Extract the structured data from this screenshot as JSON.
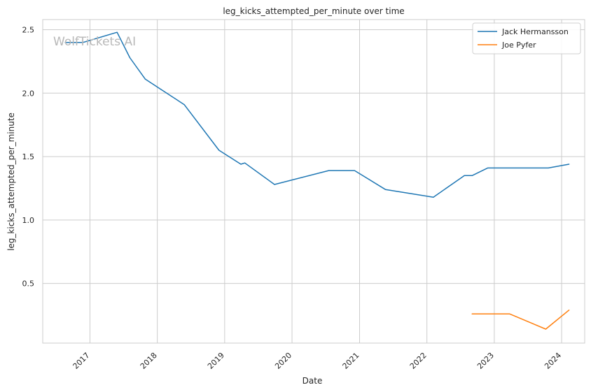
{
  "chart_data": {
    "type": "line",
    "title": "leg_kicks_attempted_per_minute over time",
    "xlabel": "Date",
    "ylabel": "leg_kicks_attempted_per_minute",
    "watermark": "WolfTickets AI",
    "x_ticks": [
      "2017",
      "2018",
      "2019",
      "2020",
      "2021",
      "2022",
      "2023",
      "2024"
    ],
    "y_ticks": [
      "0.5",
      "1.0",
      "1.5",
      "2.0",
      "2.5"
    ],
    "ylim": [
      0.03,
      2.58
    ],
    "xlim": [
      "2016-04-20",
      "2024-05-05"
    ],
    "grid": true,
    "legend_position": "top-right",
    "series": [
      {
        "name": "Jack Hermansson",
        "color": "#1f77b4",
        "points": [
          [
            "2016-08-20",
            2.4
          ],
          [
            "2016-11-25",
            2.4
          ],
          [
            "2017-05-28",
            2.48
          ],
          [
            "2017-08-05",
            2.28
          ],
          [
            "2017-10-28",
            2.11
          ],
          [
            "2018-05-27",
            1.91
          ],
          [
            "2018-12-01",
            1.55
          ],
          [
            "2019-03-30",
            1.44
          ],
          [
            "2019-04-20",
            1.45
          ],
          [
            "2019-09-28",
            1.28
          ],
          [
            "2020-07-18",
            1.39
          ],
          [
            "2020-12-05",
            1.39
          ],
          [
            "2021-05-22",
            1.24
          ],
          [
            "2022-02-05",
            1.18
          ],
          [
            "2022-07-23",
            1.35
          ],
          [
            "2022-09-03",
            1.35
          ],
          [
            "2022-11-26",
            1.41
          ],
          [
            "2023-10-21",
            1.41
          ],
          [
            "2024-02-10",
            1.44
          ]
        ]
      },
      {
        "name": "Joe Pyfer",
        "color": "#ff7f0e",
        "points": [
          [
            "2022-09-03",
            0.26
          ],
          [
            "2023-03-25",
            0.26
          ],
          [
            "2023-10-07",
            0.14
          ],
          [
            "2024-02-10",
            0.29
          ]
        ]
      }
    ]
  }
}
